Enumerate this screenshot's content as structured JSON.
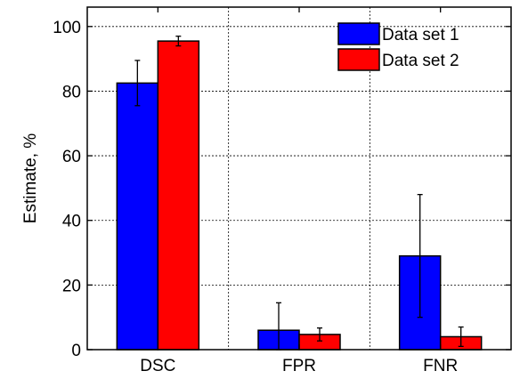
{
  "chart_data": {
    "type": "bar",
    "title": "",
    "xlabel": "",
    "ylabel": "Estimate, %",
    "categories": [
      "DSC",
      "FPR",
      "FNR"
    ],
    "ylim": [
      0,
      106
    ],
    "yticks": [
      0,
      20,
      40,
      60,
      80,
      100
    ],
    "grid": true,
    "legend_position": "top-right",
    "series": [
      {
        "name": "Data set 1",
        "color": "#0000ff",
        "values": [
          82.5,
          6.0,
          29.0
        ],
        "error": [
          7.0,
          8.5,
          19.0
        ]
      },
      {
        "name": "Data set 2",
        "color": "#ff0000",
        "values": [
          95.5,
          4.7,
          4.0
        ],
        "error": [
          1.5,
          2.0,
          3.0
        ]
      }
    ]
  }
}
